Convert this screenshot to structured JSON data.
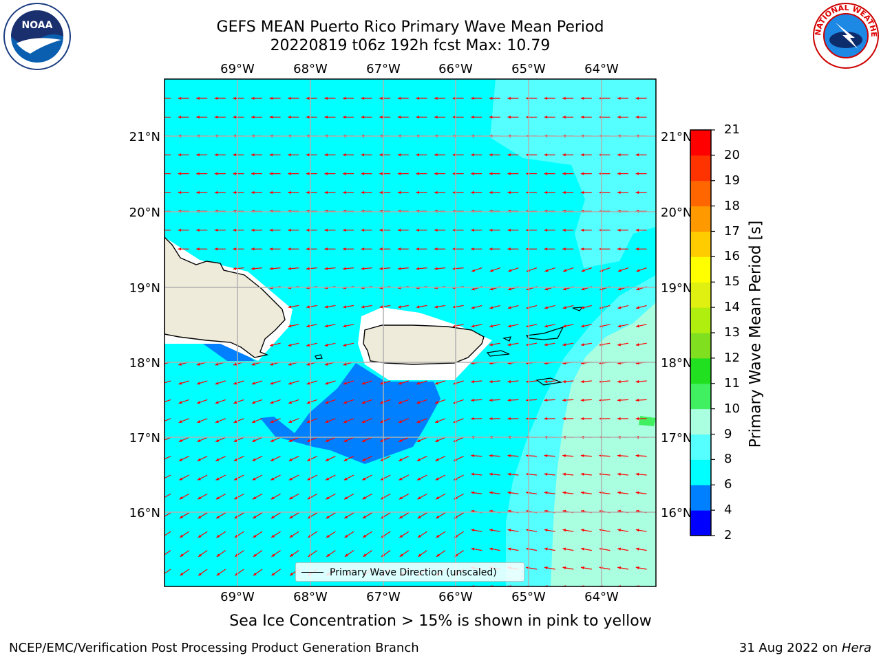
{
  "header": {
    "title_line1": "GEFS MEAN Puerto Rico Primary Wave Mean Period",
    "title_line2": "20220819 t06z 192h fcst   Max: 10.79"
  },
  "map": {
    "lon_labels": [
      "69°W",
      "68°W",
      "67°W",
      "66°W",
      "65°W",
      "64°W"
    ],
    "lat_labels": [
      "21°N",
      "20°N",
      "19°N",
      "18°N",
      "17°N",
      "16°N"
    ],
    "legend_label": "Primary Wave Direction (unscaled)",
    "arrow_color": "#ff0000",
    "coast_color": "#000000",
    "land_color": "#efebdb"
  },
  "colorbar": {
    "title": "Primary Wave Mean Period [s]",
    "tick_labels": [
      "2",
      "4",
      "6",
      "8",
      "9",
      "10",
      "11",
      "12",
      "13",
      "14",
      "15",
      "16",
      "17",
      "18",
      "19",
      "20",
      "21"
    ],
    "bands": [
      {
        "from": 2,
        "to": 4,
        "color": "#0000ff"
      },
      {
        "from": 4,
        "to": 6,
        "color": "#0080ff"
      },
      {
        "from": 6,
        "to": 8,
        "color": "#00ffff"
      },
      {
        "from": 8,
        "to": 9,
        "color": "#55ffff"
      },
      {
        "from": 9,
        "to": 10,
        "color": "#aaffe0"
      },
      {
        "from": 10,
        "to": 11,
        "color": "#40f060"
      },
      {
        "from": 11,
        "to": 12,
        "color": "#20e020"
      },
      {
        "from": 12,
        "to": 13,
        "color": "#80e020"
      },
      {
        "from": 13,
        "to": 14,
        "color": "#b0ee10"
      },
      {
        "from": 14,
        "to": 15,
        "color": "#e0f010"
      },
      {
        "from": 15,
        "to": 16,
        "color": "#ffff00"
      },
      {
        "from": 16,
        "to": 17,
        "color": "#ffcc00"
      },
      {
        "from": 17,
        "to": 18,
        "color": "#ff9900"
      },
      {
        "from": 18,
        "to": 19,
        "color": "#ff6600"
      },
      {
        "from": 19,
        "to": 20,
        "color": "#ff3300"
      },
      {
        "from": 20,
        "to": 21,
        "color": "#ff0000"
      }
    ]
  },
  "notes": {
    "ice": "Sea Ice Concentration > 15% is shown in pink to yellow"
  },
  "footer": {
    "left": "NCEP/EMC/Verification Post Processing Product Generation Branch",
    "right_prefix": "31 Aug 2022 on ",
    "right_host": "Hera"
  },
  "logos": {
    "noaa_text": "NOAA",
    "nws_text": "NATIONAL WEATHER SERVICE"
  }
}
